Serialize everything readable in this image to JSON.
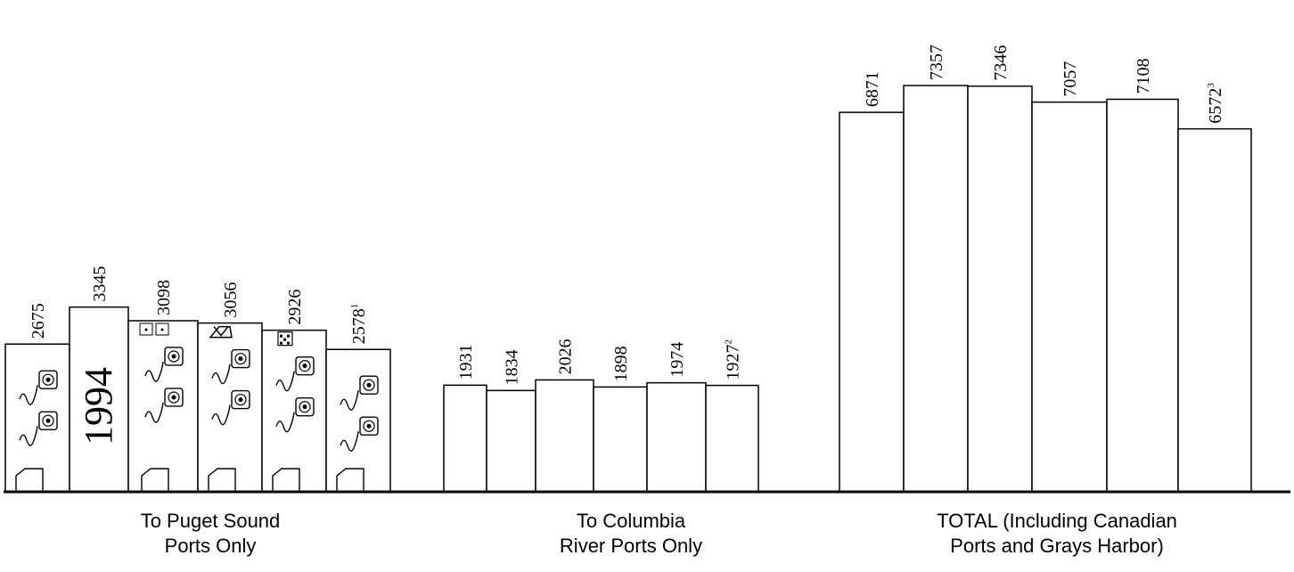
{
  "chart_data": {
    "type": "bar",
    "groups": [
      {
        "name": "puget",
        "label_lines": [
          "To Puget Sound",
          "Ports Only"
        ],
        "values": [
          2675,
          3345,
          3098,
          3056,
          2926,
          2578
        ],
        "labels": [
          "2675",
          "3345",
          "3098",
          "3056",
          "2926",
          "2578"
        ],
        "footnotes": [
          "",
          "",
          "",
          "",
          "",
          "1"
        ],
        "icons": [
          "",
          "",
          "filing-cabinet",
          "file-folder",
          "calendar",
          ""
        ]
      },
      {
        "name": "columbia",
        "label_lines": [
          "To Columbia",
          "River Ports Only"
        ],
        "values": [
          1931,
          1834,
          2026,
          1898,
          1974,
          1927
        ],
        "labels": [
          "1931",
          "1834",
          "2026",
          "1898",
          "1974",
          "1927"
        ],
        "footnotes": [
          "",
          "",
          "",
          "",
          "",
          "2"
        ]
      },
      {
        "name": "total",
        "label_lines": [
          "TOTAL (Including Canadian",
          "Ports and Grays Harbor)"
        ],
        "values": [
          6871,
          7357,
          7346,
          7057,
          7108,
          6572
        ],
        "labels": [
          "6871",
          "7357",
          "7346",
          "7057",
          "7108",
          "6572"
        ],
        "footnotes": [
          "",
          "",
          "",
          "",
          "",
          "3"
        ]
      }
    ],
    "annotations": [
      {
        "text": "1994",
        "group": 0,
        "bar": 1
      }
    ],
    "colors": {
      "bar_fill": "#ffffff",
      "stroke": "#000000"
    },
    "grid": false
  }
}
